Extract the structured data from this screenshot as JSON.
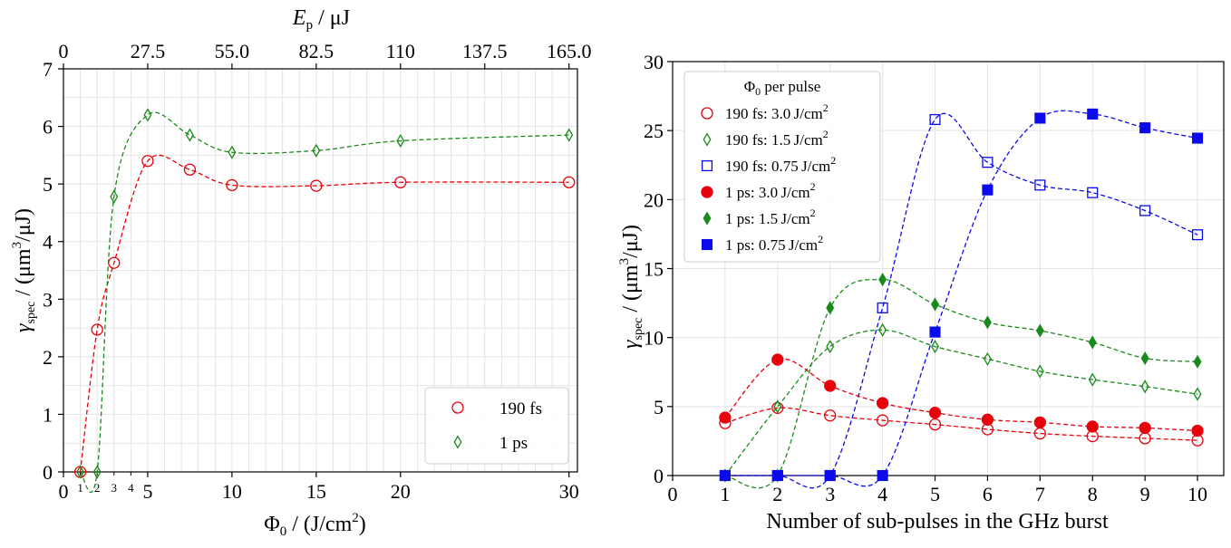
{
  "chart_data": [
    {
      "type": "scatter",
      "subtype": "line-with-markers",
      "xlabel_main": "Φ",
      "xlabel_sub": "0",
      "xlabel_rest": " / (J/cm",
      "xlabel_sup": "2",
      "xlabel_end": ")",
      "ylabel_main": "γ",
      "ylabel_sub": "spec",
      "ylabel_rest": " / (μm",
      "ylabel_sup": "3",
      "ylabel_end": "/μJ)",
      "top_xlabel_main": "E",
      "top_xlabel_sub": "p",
      "top_xlabel_rest": " / μJ",
      "xlim": [
        0,
        30.5
      ],
      "ylim": [
        0,
        7
      ],
      "grid": true,
      "legend_position": "lower-right",
      "x_ticks_major": [
        "0",
        "5",
        "10",
        "15",
        "20",
        "30"
      ],
      "x_ticks_major_values": [
        0,
        5,
        10,
        15,
        20,
        30
      ],
      "x_ticks_minor": [
        "1",
        "2",
        "3",
        "4"
      ],
      "x_ticks_minor_values": [
        1,
        2,
        3,
        4
      ],
      "y_ticks": [
        "0",
        "1",
        "2",
        "3",
        "4",
        "5",
        "6",
        "7"
      ],
      "y_ticks_values": [
        0,
        1,
        2,
        3,
        4,
        5,
        6,
        7
      ],
      "top_ticks": [
        "0",
        "27.5",
        "55.0",
        "82.5",
        "110",
        "137.5",
        "165.0"
      ],
      "top_ticks_values": [
        0,
        5,
        10,
        15,
        20,
        25,
        30
      ],
      "series": [
        {
          "name": "190 fs",
          "marker": "circle-open",
          "color": "#e8000b",
          "x": [
            1,
            2,
            3,
            5,
            7.5,
            10,
            15,
            20,
            30
          ],
          "y": [
            0,
            2.47,
            3.63,
            5.4,
            5.25,
            4.98,
            4.97,
            5.03,
            5.03
          ]
        },
        {
          "name": "1 ps",
          "marker": "diamond-open",
          "color": "#1a8a1a",
          "x": [
            1,
            2,
            3,
            5,
            7.5,
            10,
            15,
            20,
            30
          ],
          "y": [
            0,
            0,
            4.78,
            6.2,
            5.85,
            5.55,
            5.58,
            5.75,
            5.85
          ]
        }
      ]
    },
    {
      "type": "scatter",
      "subtype": "line-with-markers",
      "xlabel": "Number of sub-pulses in the GHz burst",
      "ylabel_main": "γ",
      "ylabel_sub": "spec",
      "ylabel_rest": " / (μm",
      "ylabel_sup": "3",
      "ylabel_end": "/μJ)",
      "xlim": [
        0,
        10.5
      ],
      "ylim": [
        0,
        30
      ],
      "grid": true,
      "legend_position": "top-left",
      "legend_title_main": "Φ",
      "legend_title_sub": "0",
      "legend_title_rest": " per pulse",
      "x_ticks": [
        "0",
        "1",
        "2",
        "3",
        "4",
        "5",
        "6",
        "7",
        "8",
        "9",
        "10"
      ],
      "x_ticks_values": [
        0,
        1,
        2,
        3,
        4,
        5,
        6,
        7,
        8,
        9,
        10
      ],
      "y_ticks": [
        "0",
        "5",
        "10",
        "15",
        "20",
        "25",
        "30"
      ],
      "y_ticks_values": [
        0,
        5,
        10,
        15,
        20,
        25,
        30
      ],
      "series": [
        {
          "name": "190 fs: 3.0 J/cm²",
          "label_prefix": "190 fs: 3.0",
          "label_unit": "J/cm",
          "label_sup": "2",
          "marker": "circle-open",
          "color": "#e8000b",
          "x": [
            1,
            2,
            3,
            4,
            5,
            6,
            7,
            8,
            9,
            10
          ],
          "y": [
            3.8,
            4.9,
            4.35,
            4.0,
            3.7,
            3.35,
            3.05,
            2.85,
            2.7,
            2.55
          ]
        },
        {
          "name": "190 fs: 1.5 J/cm²",
          "label_prefix": "190 fs: 1.5",
          "label_unit": "J/cm",
          "label_sup": "2",
          "marker": "diamond-open",
          "color": "#1a8a1a",
          "x": [
            1,
            2,
            3,
            4,
            5,
            6,
            7,
            8,
            9,
            10
          ],
          "y": [
            0,
            5.0,
            9.35,
            10.55,
            9.35,
            8.45,
            7.55,
            6.95,
            6.45,
            5.9
          ]
        },
        {
          "name": "190 fs: 0.75 J/cm²",
          "label_prefix": "190 fs: 0.75",
          "label_unit": "J/cm",
          "label_sup": "2",
          "marker": "square-open",
          "color": "#0a0aea",
          "x": [
            1,
            2,
            3,
            4,
            5,
            6,
            7,
            8,
            9,
            10
          ],
          "y": [
            0,
            0,
            0,
            12.15,
            25.8,
            22.7,
            21.05,
            20.5,
            19.2,
            17.45
          ]
        },
        {
          "name": "1 ps: 3.0 J/cm²",
          "label_prefix": "1 ps: 3.0",
          "label_unit": "J/cm",
          "label_sup": "2",
          "marker": "circle-filled",
          "color": "#e8000b",
          "x": [
            1,
            2,
            3,
            4,
            5,
            6,
            7,
            8,
            9,
            10
          ],
          "y": [
            4.2,
            8.4,
            6.5,
            5.25,
            4.55,
            4.05,
            3.85,
            3.55,
            3.45,
            3.25
          ]
        },
        {
          "name": "1 ps: 1.5 J/cm²",
          "label_prefix": "1 ps: 1.5",
          "label_unit": "J/cm",
          "label_sup": "2",
          "marker": "diamond-filled",
          "color": "#1a8a1a",
          "x": [
            1,
            2,
            3,
            4,
            5,
            6,
            7,
            8,
            9,
            10
          ],
          "y": [
            0,
            0,
            12.15,
            14.2,
            12.4,
            11.1,
            10.5,
            9.65,
            8.5,
            8.25
          ]
        },
        {
          "name": "1 ps: 0.75 J/cm²",
          "label_prefix": "1 ps: 0.75",
          "label_unit": "J/cm",
          "label_sup": "2",
          "marker": "square-filled",
          "color": "#0a0aea",
          "x": [
            1,
            2,
            3,
            4,
            5,
            6,
            7,
            8,
            9,
            10
          ],
          "y": [
            0,
            0,
            0,
            0,
            10.4,
            20.7,
            25.9,
            26.2,
            25.2,
            24.45
          ]
        }
      ]
    }
  ]
}
